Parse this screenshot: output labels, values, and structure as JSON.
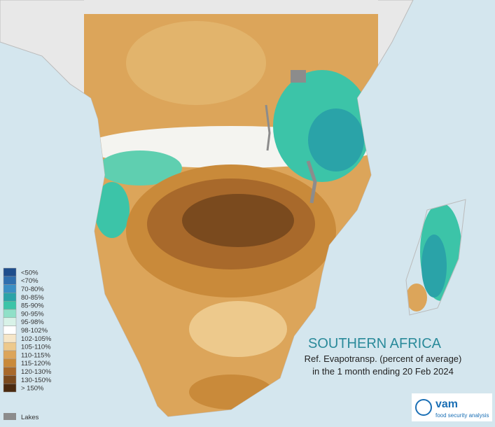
{
  "legend": {
    "entries": [
      {
        "label": "<50%",
        "color": "#1f4e8c"
      },
      {
        "label": "<70%",
        "color": "#2f6fae"
      },
      {
        "label": "70-80%",
        "color": "#3a8fc4"
      },
      {
        "label": "80-85%",
        "color": "#2aa3a8"
      },
      {
        "label": "85-90%",
        "color": "#3cc4a8"
      },
      {
        "label": "90-95%",
        "color": "#8fe0c8"
      },
      {
        "label": "95-98%",
        "color": "#d8f2e8"
      },
      {
        "label": "98-102%",
        "color": "#ffffff"
      },
      {
        "label": "102-105%",
        "color": "#f6e6c8"
      },
      {
        "label": "105-110%",
        "color": "#edc98c"
      },
      {
        "label": "110-115%",
        "color": "#dca55a"
      },
      {
        "label": "115-120%",
        "color": "#c98a3a"
      },
      {
        "label": "120-130%",
        "color": "#a8692b"
      },
      {
        "label": "130-150%",
        "color": "#7a4a1e"
      },
      {
        "label": "> 150%",
        "color": "#4a2a10"
      }
    ],
    "lakes": {
      "label": "Lakes",
      "color": "#8c8c8c"
    }
  },
  "title": "SOUTHERN AFRICA",
  "subtitle": [
    "Ref. Evapotransp. (percent of average)",
    "in the 1 month ending 20 Feb 2024"
  ],
  "logo": {
    "name": "vam",
    "tagline": "food security analysis"
  }
}
